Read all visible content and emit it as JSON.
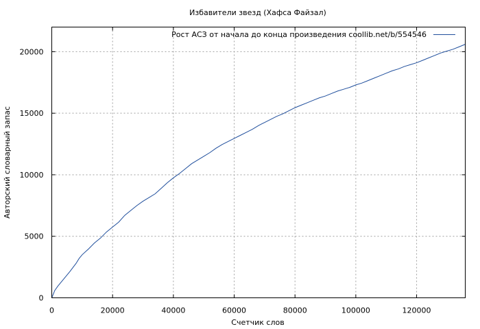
{
  "chart_data": {
    "type": "line",
    "title": "Избавители звезд (Хафса Файзал)",
    "xlabel": "Счетчик слов",
    "ylabel": "Авторский словарный запас",
    "xlim": [
      0,
      136000
    ],
    "ylim": [
      0,
      22000
    ],
    "xticks": [
      0,
      20000,
      40000,
      60000,
      80000,
      100000,
      120000
    ],
    "yticks": [
      0,
      5000,
      10000,
      15000,
      20000
    ],
    "grid": true,
    "legend_position": "top-right",
    "series": [
      {
        "name": "Рост АСЗ от начала до конца произведения  coollib.net/b/554546",
        "color": "#1f4e9c",
        "points": [
          [
            0,
            0
          ],
          [
            1000,
            600
          ],
          [
            2000,
            950
          ],
          [
            4000,
            1550
          ],
          [
            6000,
            2150
          ],
          [
            8000,
            2800
          ],
          [
            9000,
            3200
          ],
          [
            10000,
            3500
          ],
          [
            12000,
            3950
          ],
          [
            14000,
            4450
          ],
          [
            16000,
            4850
          ],
          [
            18000,
            5350
          ],
          [
            20000,
            5750
          ],
          [
            22000,
            6150
          ],
          [
            24000,
            6700
          ],
          [
            26000,
            7100
          ],
          [
            28000,
            7500
          ],
          [
            30000,
            7850
          ],
          [
            32000,
            8150
          ],
          [
            34000,
            8450
          ],
          [
            36000,
            8900
          ],
          [
            38000,
            9350
          ],
          [
            40000,
            9750
          ],
          [
            42000,
            10100
          ],
          [
            44000,
            10500
          ],
          [
            46000,
            10900
          ],
          [
            48000,
            11200
          ],
          [
            50000,
            11500
          ],
          [
            52000,
            11800
          ],
          [
            54000,
            12150
          ],
          [
            56000,
            12450
          ],
          [
            58000,
            12700
          ],
          [
            60000,
            12950
          ],
          [
            62000,
            13200
          ],
          [
            64000,
            13450
          ],
          [
            66000,
            13700
          ],
          [
            68000,
            14000
          ],
          [
            70000,
            14250
          ],
          [
            72000,
            14500
          ],
          [
            74000,
            14750
          ],
          [
            76000,
            14950
          ],
          [
            78000,
            15200
          ],
          [
            80000,
            15450
          ],
          [
            82000,
            15650
          ],
          [
            84000,
            15850
          ],
          [
            86000,
            16050
          ],
          [
            88000,
            16250
          ],
          [
            90000,
            16400
          ],
          [
            92000,
            16600
          ],
          [
            94000,
            16800
          ],
          [
            96000,
            16950
          ],
          [
            98000,
            17100
          ],
          [
            100000,
            17300
          ],
          [
            102000,
            17450
          ],
          [
            104000,
            17650
          ],
          [
            106000,
            17850
          ],
          [
            108000,
            18050
          ],
          [
            110000,
            18250
          ],
          [
            112000,
            18450
          ],
          [
            114000,
            18600
          ],
          [
            116000,
            18800
          ],
          [
            118000,
            18950
          ],
          [
            120000,
            19100
          ],
          [
            122000,
            19300
          ],
          [
            124000,
            19500
          ],
          [
            126000,
            19700
          ],
          [
            128000,
            19900
          ],
          [
            130000,
            20050
          ],
          [
            132000,
            20200
          ],
          [
            134000,
            20400
          ],
          [
            136000,
            20600
          ]
        ]
      }
    ]
  }
}
